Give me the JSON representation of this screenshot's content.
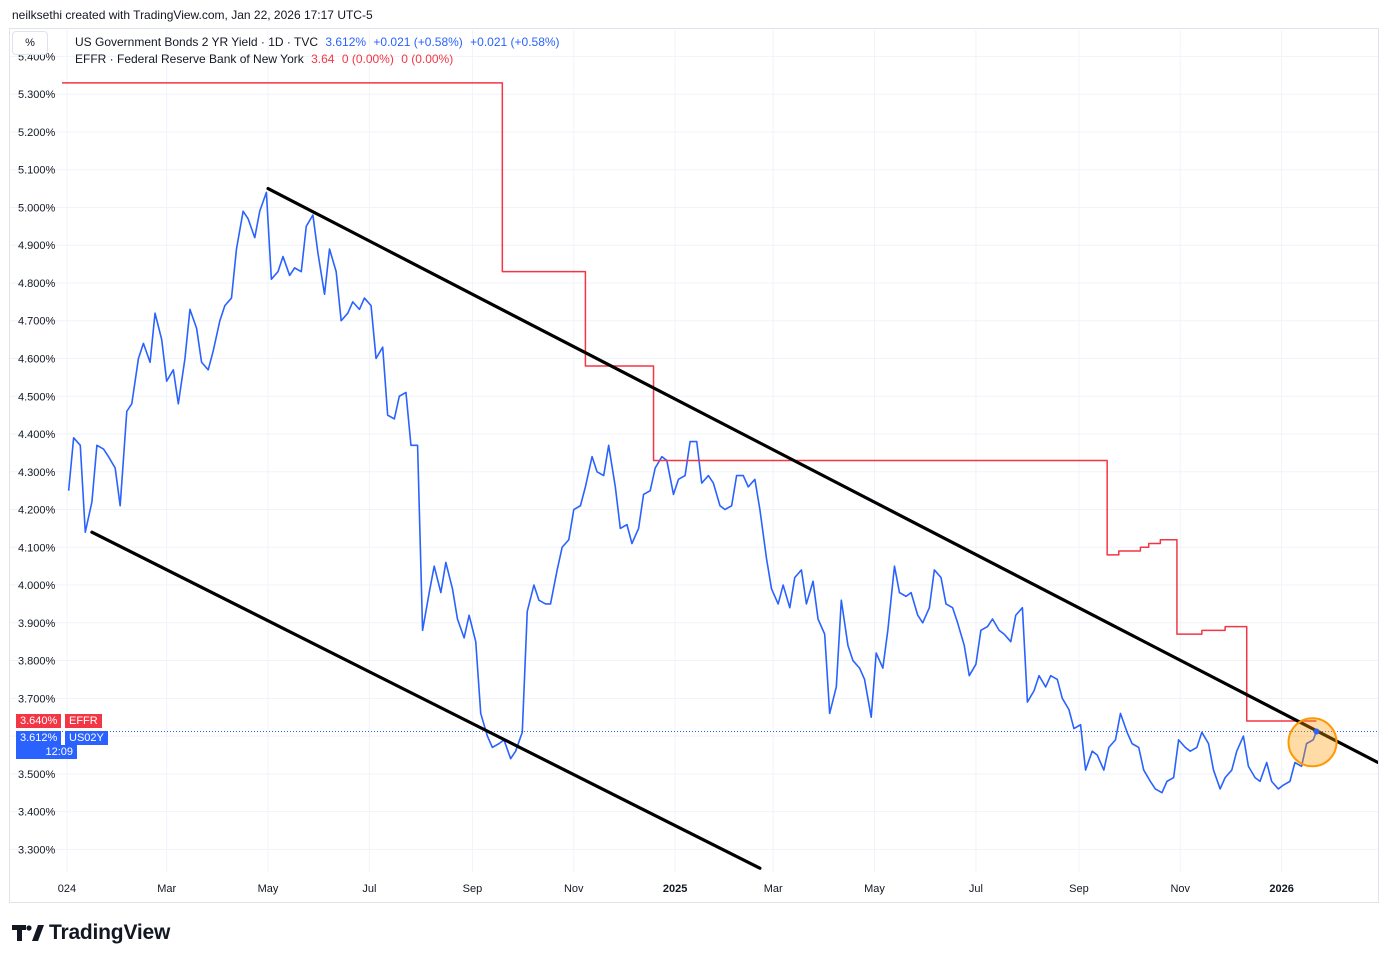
{
  "header": {
    "text": "neilksethi created with TradingView.com, Jan 22, 2026 17:17 UTC-5"
  },
  "toolbar": {
    "scale_button_label": "%"
  },
  "legend": {
    "series1": {
      "name": "US Government Bonds 2 YR Yield · 1D · TVC",
      "value": "3.612%",
      "change1": "+0.021 (+0.58%)",
      "change2": "+0.021 (+0.58%)",
      "color": "#2962ff"
    },
    "series2": {
      "name": "EFFR · Federal Reserve Bank of New York",
      "value": "3.64",
      "change1": "0 (0.00%)",
      "change2": "0 (0.00%)",
      "color": "#f23645"
    }
  },
  "badges": {
    "effr_value": "3.640%",
    "effr_label": "EFFR",
    "us02y_value": "3.612%",
    "us02y_label": "US02Y",
    "us02y_countdown": "12:09"
  },
  "branding": {
    "logo_text": "TradingView"
  },
  "chart_data": {
    "type": "line",
    "y_ticks": [
      "5.400%",
      "5.300%",
      "5.200%",
      "5.100%",
      "5.000%",
      "4.900%",
      "4.800%",
      "4.700%",
      "4.600%",
      "4.500%",
      "4.400%",
      "4.300%",
      "4.200%",
      "4.100%",
      "4.000%",
      "3.900%",
      "3.800%",
      "3.700%",
      "3.600%",
      "3.500%",
      "3.400%",
      "3.300%"
    ],
    "y_tick_values": [
      5.4,
      5.3,
      5.2,
      5.1,
      5.0,
      4.9,
      4.8,
      4.7,
      4.6,
      4.5,
      4.4,
      4.3,
      4.2,
      4.1,
      4.0,
      3.9,
      3.8,
      3.7,
      3.6,
      3.5,
      3.4,
      3.3
    ],
    "x_ticks": [
      {
        "label": "024",
        "date": "2024-01-01"
      },
      {
        "label": "Mar",
        "date": "2024-03-01"
      },
      {
        "label": "May",
        "date": "2024-05-01"
      },
      {
        "label": "Jul",
        "date": "2024-07-01"
      },
      {
        "label": "Sep",
        "date": "2024-09-01"
      },
      {
        "label": "Nov",
        "date": "2024-11-01"
      },
      {
        "label": "2025",
        "date": "2025-01-01",
        "bold": true
      },
      {
        "label": "Mar",
        "date": "2025-03-01"
      },
      {
        "label": "May",
        "date": "2025-05-01"
      },
      {
        "label": "Jul",
        "date": "2025-07-01"
      },
      {
        "label": "Sep",
        "date": "2025-09-01"
      },
      {
        "label": "Nov",
        "date": "2025-11-01"
      },
      {
        "label": "2026",
        "date": "2026-01-01",
        "bold": true
      }
    ],
    "ylim": [
      3.24,
      5.47
    ],
    "xlim": [
      "2023-12-29",
      "2026-02-28"
    ],
    "grid": true,
    "series": [
      {
        "name": "US Government Bonds 2 YR Yield",
        "color": "#2962ff",
        "points": [
          [
            "2024-01-02",
            4.25
          ],
          [
            "2024-01-05",
            4.39
          ],
          [
            "2024-01-09",
            4.37
          ],
          [
            "2024-01-12",
            4.14
          ],
          [
            "2024-01-16",
            4.22
          ],
          [
            "2024-01-19",
            4.37
          ],
          [
            "2024-01-23",
            4.36
          ],
          [
            "2024-01-26",
            4.34
          ],
          [
            "2024-01-30",
            4.31
          ],
          [
            "2024-02-02",
            4.21
          ],
          [
            "2024-02-06",
            4.46
          ],
          [
            "2024-02-09",
            4.48
          ],
          [
            "2024-02-13",
            4.6
          ],
          [
            "2024-02-16",
            4.64
          ],
          [
            "2024-02-20",
            4.59
          ],
          [
            "2024-02-23",
            4.72
          ],
          [
            "2024-02-27",
            4.65
          ],
          [
            "2024-03-01",
            4.54
          ],
          [
            "2024-03-05",
            4.57
          ],
          [
            "2024-03-08",
            4.48
          ],
          [
            "2024-03-12",
            4.6
          ],
          [
            "2024-03-15",
            4.73
          ],
          [
            "2024-03-19",
            4.68
          ],
          [
            "2024-03-22",
            4.59
          ],
          [
            "2024-03-26",
            4.57
          ],
          [
            "2024-03-29",
            4.62
          ],
          [
            "2024-04-02",
            4.7
          ],
          [
            "2024-04-05",
            4.74
          ],
          [
            "2024-04-09",
            4.76
          ],
          [
            "2024-04-12",
            4.89
          ],
          [
            "2024-04-16",
            4.99
          ],
          [
            "2024-04-19",
            4.97
          ],
          [
            "2024-04-23",
            4.92
          ],
          [
            "2024-04-26",
            4.99
          ],
          [
            "2024-04-30",
            5.04
          ],
          [
            "2024-05-03",
            4.81
          ],
          [
            "2024-05-07",
            4.83
          ],
          [
            "2024-05-10",
            4.87
          ],
          [
            "2024-05-14",
            4.82
          ],
          [
            "2024-05-17",
            4.84
          ],
          [
            "2024-05-21",
            4.83
          ],
          [
            "2024-05-24",
            4.95
          ],
          [
            "2024-05-28",
            4.98
          ],
          [
            "2024-05-31",
            4.88
          ],
          [
            "2024-06-04",
            4.77
          ],
          [
            "2024-06-07",
            4.89
          ],
          [
            "2024-06-11",
            4.83
          ],
          [
            "2024-06-14",
            4.7
          ],
          [
            "2024-06-18",
            4.72
          ],
          [
            "2024-06-21",
            4.75
          ],
          [
            "2024-06-25",
            4.73
          ],
          [
            "2024-06-28",
            4.76
          ],
          [
            "2024-07-02",
            4.74
          ],
          [
            "2024-07-05",
            4.6
          ],
          [
            "2024-07-09",
            4.63
          ],
          [
            "2024-07-12",
            4.45
          ],
          [
            "2024-07-16",
            4.44
          ],
          [
            "2024-07-19",
            4.5
          ],
          [
            "2024-07-23",
            4.51
          ],
          [
            "2024-07-26",
            4.37
          ],
          [
            "2024-07-30",
            4.37
          ],
          [
            "2024-08-02",
            3.88
          ],
          [
            "2024-08-06",
            3.98
          ],
          [
            "2024-08-09",
            4.05
          ],
          [
            "2024-08-13",
            3.98
          ],
          [
            "2024-08-16",
            4.06
          ],
          [
            "2024-08-20",
            3.99
          ],
          [
            "2024-08-23",
            3.91
          ],
          [
            "2024-08-27",
            3.86
          ],
          [
            "2024-08-30",
            3.92
          ],
          [
            "2024-09-03",
            3.85
          ],
          [
            "2024-09-06",
            3.66
          ],
          [
            "2024-09-10",
            3.6
          ],
          [
            "2024-09-13",
            3.57
          ],
          [
            "2024-09-17",
            3.58
          ],
          [
            "2024-09-20",
            3.59
          ],
          [
            "2024-09-24",
            3.54
          ],
          [
            "2024-09-27",
            3.56
          ],
          [
            "2024-10-01",
            3.61
          ],
          [
            "2024-10-04",
            3.93
          ],
          [
            "2024-10-08",
            4.0
          ],
          [
            "2024-10-11",
            3.96
          ],
          [
            "2024-10-15",
            3.95
          ],
          [
            "2024-10-18",
            3.95
          ],
          [
            "2024-10-22",
            4.04
          ],
          [
            "2024-10-25",
            4.1
          ],
          [
            "2024-10-29",
            4.12
          ],
          [
            "2024-11-01",
            4.2
          ],
          [
            "2024-11-05",
            4.21
          ],
          [
            "2024-11-08",
            4.26
          ],
          [
            "2024-11-12",
            4.34
          ],
          [
            "2024-11-15",
            4.3
          ],
          [
            "2024-11-19",
            4.29
          ],
          [
            "2024-11-22",
            4.37
          ],
          [
            "2024-11-26",
            4.26
          ],
          [
            "2024-11-29",
            4.15
          ],
          [
            "2024-12-03",
            4.16
          ],
          [
            "2024-12-06",
            4.11
          ],
          [
            "2024-12-10",
            4.15
          ],
          [
            "2024-12-13",
            4.24
          ],
          [
            "2024-12-17",
            4.25
          ],
          [
            "2024-12-20",
            4.31
          ],
          [
            "2024-12-24",
            4.34
          ],
          [
            "2024-12-27",
            4.33
          ],
          [
            "2024-12-31",
            4.24
          ],
          [
            "2025-01-03",
            4.28
          ],
          [
            "2025-01-07",
            4.29
          ],
          [
            "2025-01-10",
            4.38
          ],
          [
            "2025-01-14",
            4.38
          ],
          [
            "2025-01-17",
            4.27
          ],
          [
            "2025-01-21",
            4.29
          ],
          [
            "2025-01-24",
            4.27
          ],
          [
            "2025-01-28",
            4.21
          ],
          [
            "2025-01-31",
            4.2
          ],
          [
            "2025-02-04",
            4.21
          ],
          [
            "2025-02-07",
            4.29
          ],
          [
            "2025-02-11",
            4.29
          ],
          [
            "2025-02-14",
            4.26
          ],
          [
            "2025-02-18",
            4.28
          ],
          [
            "2025-02-21",
            4.2
          ],
          [
            "2025-02-25",
            4.07
          ],
          [
            "2025-02-28",
            3.99
          ],
          [
            "2025-03-04",
            3.95
          ],
          [
            "2025-03-07",
            4.0
          ],
          [
            "2025-03-11",
            3.94
          ],
          [
            "2025-03-14",
            4.02
          ],
          [
            "2025-03-18",
            4.04
          ],
          [
            "2025-03-21",
            3.95
          ],
          [
            "2025-03-25",
            4.01
          ],
          [
            "2025-03-28",
            3.91
          ],
          [
            "2025-04-01",
            3.87
          ],
          [
            "2025-04-04",
            3.66
          ],
          [
            "2025-04-08",
            3.73
          ],
          [
            "2025-04-11",
            3.96
          ],
          [
            "2025-04-15",
            3.84
          ],
          [
            "2025-04-18",
            3.8
          ],
          [
            "2025-04-22",
            3.78
          ],
          [
            "2025-04-25",
            3.75
          ],
          [
            "2025-04-29",
            3.65
          ],
          [
            "2025-05-02",
            3.82
          ],
          [
            "2025-05-06",
            3.78
          ],
          [
            "2025-05-09",
            3.88
          ],
          [
            "2025-05-13",
            4.05
          ],
          [
            "2025-05-16",
            3.98
          ],
          [
            "2025-05-20",
            3.97
          ],
          [
            "2025-05-23",
            3.98
          ],
          [
            "2025-05-27",
            3.92
          ],
          [
            "2025-05-30",
            3.9
          ],
          [
            "2025-06-03",
            3.94
          ],
          [
            "2025-06-06",
            4.04
          ],
          [
            "2025-06-10",
            4.02
          ],
          [
            "2025-06-13",
            3.95
          ],
          [
            "2025-06-17",
            3.94
          ],
          [
            "2025-06-20",
            3.9
          ],
          [
            "2025-06-24",
            3.84
          ],
          [
            "2025-06-27",
            3.76
          ],
          [
            "2025-07-01",
            3.79
          ],
          [
            "2025-07-04",
            3.88
          ],
          [
            "2025-07-08",
            3.89
          ],
          [
            "2025-07-11",
            3.91
          ],
          [
            "2025-07-15",
            3.88
          ],
          [
            "2025-07-18",
            3.87
          ],
          [
            "2025-07-22",
            3.85
          ],
          [
            "2025-07-25",
            3.92
          ],
          [
            "2025-07-29",
            3.94
          ],
          [
            "2025-08-01",
            3.69
          ],
          [
            "2025-08-05",
            3.72
          ],
          [
            "2025-08-08",
            3.76
          ],
          [
            "2025-08-12",
            3.73
          ],
          [
            "2025-08-15",
            3.76
          ],
          [
            "2025-08-19",
            3.75
          ],
          [
            "2025-08-22",
            3.7
          ],
          [
            "2025-08-26",
            3.67
          ],
          [
            "2025-08-29",
            3.62
          ],
          [
            "2025-09-02",
            3.63
          ],
          [
            "2025-09-05",
            3.51
          ],
          [
            "2025-09-09",
            3.56
          ],
          [
            "2025-09-12",
            3.55
          ],
          [
            "2025-09-16",
            3.51
          ],
          [
            "2025-09-19",
            3.57
          ],
          [
            "2025-09-23",
            3.59
          ],
          [
            "2025-09-26",
            3.66
          ],
          [
            "2025-09-30",
            3.61
          ],
          [
            "2025-10-03",
            3.58
          ],
          [
            "2025-10-07",
            3.57
          ],
          [
            "2025-10-10",
            3.51
          ],
          [
            "2025-10-14",
            3.48
          ],
          [
            "2025-10-17",
            3.46
          ],
          [
            "2025-10-21",
            3.45
          ],
          [
            "2025-10-24",
            3.48
          ],
          [
            "2025-10-28",
            3.49
          ],
          [
            "2025-10-31",
            3.59
          ],
          [
            "2025-11-04",
            3.57
          ],
          [
            "2025-11-07",
            3.56
          ],
          [
            "2025-11-11",
            3.57
          ],
          [
            "2025-11-14",
            3.61
          ],
          [
            "2025-11-18",
            3.58
          ],
          [
            "2025-11-21",
            3.51
          ],
          [
            "2025-11-25",
            3.46
          ],
          [
            "2025-11-28",
            3.49
          ],
          [
            "2025-12-02",
            3.51
          ],
          [
            "2025-12-05",
            3.56
          ],
          [
            "2025-12-09",
            3.6
          ],
          [
            "2025-12-12",
            3.52
          ],
          [
            "2025-12-16",
            3.49
          ],
          [
            "2025-12-19",
            3.48
          ],
          [
            "2025-12-23",
            3.53
          ],
          [
            "2025-12-26",
            3.48
          ],
          [
            "2025-12-30",
            3.46
          ],
          [
            "2026-01-02",
            3.47
          ],
          [
            "2026-01-06",
            3.48
          ],
          [
            "2026-01-09",
            3.53
          ],
          [
            "2026-01-13",
            3.52
          ],
          [
            "2026-01-16",
            3.58
          ],
          [
            "2026-01-20",
            3.59
          ],
          [
            "2026-01-22",
            3.612
          ]
        ]
      },
      {
        "name": "EFFR",
        "color": "#f23645",
        "step": true,
        "points": [
          [
            "2023-12-29",
            5.33
          ],
          [
            "2024-09-19",
            4.83
          ],
          [
            "2024-11-08",
            4.58
          ],
          [
            "2024-12-19",
            4.33
          ],
          [
            "2025-09-18",
            4.08
          ],
          [
            "2025-09-25",
            4.09
          ],
          [
            "2025-10-08",
            4.1
          ],
          [
            "2025-10-13",
            4.11
          ],
          [
            "2025-10-20",
            4.12
          ],
          [
            "2025-10-30",
            3.87
          ],
          [
            "2025-11-05",
            3.87
          ],
          [
            "2025-11-14",
            3.88
          ],
          [
            "2025-11-28",
            3.89
          ],
          [
            "2025-12-11",
            3.64
          ],
          [
            "2026-01-22",
            3.64
          ]
        ]
      }
    ],
    "drawings": [
      {
        "type": "trendline",
        "color": "#000000",
        "from": [
          "2024-05-01",
          5.05
        ],
        "to": [
          "2026-02-28",
          3.53
        ]
      },
      {
        "type": "trendline",
        "color": "#000000",
        "from": [
          "2024-01-16",
          4.14
        ],
        "to": [
          "2025-02-21",
          3.25
        ]
      },
      {
        "type": "circle-marker",
        "color": "#ff9800",
        "center": [
          "2026-01-22",
          3.61
        ]
      }
    ]
  }
}
